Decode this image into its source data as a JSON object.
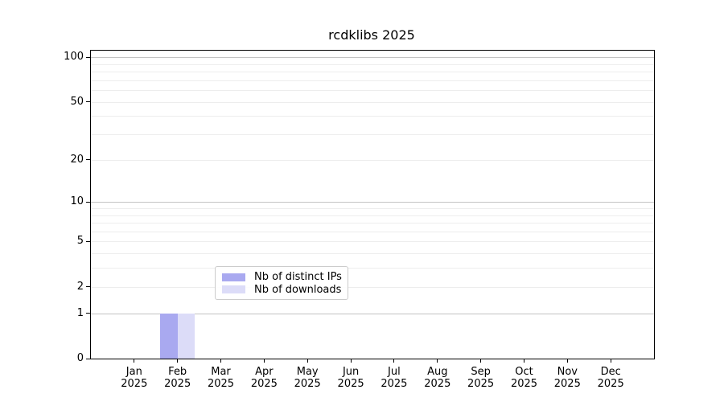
{
  "chart_data": {
    "type": "bar",
    "title": "rcdklibs 2025",
    "x_axis": {
      "months": [
        "Jan",
        "Feb",
        "Mar",
        "Apr",
        "May",
        "Jun",
        "Jul",
        "Aug",
        "Sep",
        "Oct",
        "Nov",
        "Dec"
      ],
      "year": "2025"
    },
    "y_axis": {
      "scale": "log1p",
      "min": 0,
      "max": 100,
      "ticks": [
        0,
        1,
        2,
        5,
        10,
        20,
        50,
        100
      ],
      "major_grid": [
        1,
        10,
        100
      ],
      "minor_grid": [
        2,
        3,
        4,
        5,
        6,
        7,
        8,
        9,
        20,
        30,
        40,
        50,
        60,
        70,
        80,
        90
      ]
    },
    "series": [
      {
        "name": "Nb of distinct IPs",
        "color": "#a9a9f0",
        "values": [
          0,
          1,
          0,
          0,
          0,
          0,
          0,
          0,
          0,
          0,
          0,
          0
        ]
      },
      {
        "name": "Nb of downloads",
        "color": "#dcdcf8",
        "values": [
          0,
          1,
          0,
          0,
          0,
          0,
          0,
          0,
          0,
          0,
          0,
          0
        ]
      }
    ],
    "legend": {
      "position": "bottom-center",
      "entries": [
        "Nb of distinct IPs",
        "Nb of downloads"
      ]
    }
  }
}
